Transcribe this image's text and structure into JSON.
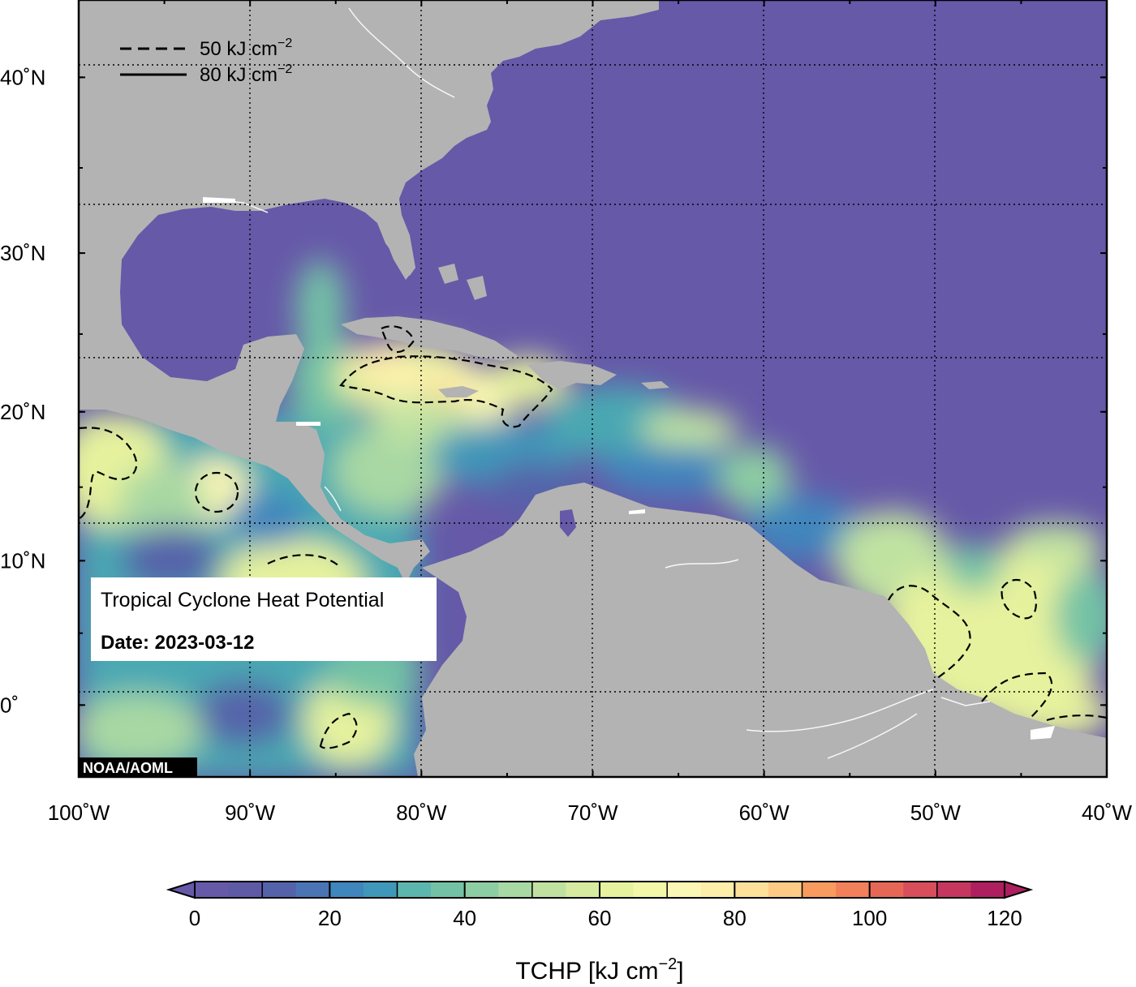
{
  "map": {
    "title": "Tropical Cyclone Heat Potential",
    "date_label": "Date: 2023-03-12",
    "credit": "NOAA/AOML",
    "extent": {
      "lon_min": -100,
      "lon_max": -40,
      "lat_min": -5,
      "lat_max": 44
    },
    "lat_ticks": [
      {
        "value": 40,
        "label": "40˚N"
      },
      {
        "value": 30,
        "label": "30˚N"
      },
      {
        "value": 20,
        "label": "20˚N"
      },
      {
        "value": 10,
        "label": "10˚N"
      },
      {
        "value": 0,
        "label": "0˚"
      }
    ],
    "lon_ticks": [
      {
        "value": -100,
        "label": "100˚W"
      },
      {
        "value": -90,
        "label": "90˚W"
      },
      {
        "value": -80,
        "label": "80˚W"
      },
      {
        "value": -70,
        "label": "70˚W"
      },
      {
        "value": -60,
        "label": "60˚W"
      },
      {
        "value": -50,
        "label": "50˚W"
      },
      {
        "value": -40,
        "label": "40˚W"
      }
    ],
    "legend": [
      {
        "style": "dashed",
        "label_main": "50 kJ cm",
        "label_sup": "−2"
      },
      {
        "style": "solid",
        "label_main": "80 kJ cm",
        "label_sup": "−2"
      }
    ],
    "colors": {
      "land": "#b3b3b3",
      "ocean_low": "#6659a8",
      "frame": "#000000"
    }
  },
  "colorbar": {
    "min": 0,
    "max": 120,
    "step": 5,
    "ticks": [
      {
        "value": 0,
        "label": "0"
      },
      {
        "value": 20,
        "label": "20"
      },
      {
        "value": 40,
        "label": "40"
      },
      {
        "value": 60,
        "label": "60"
      },
      {
        "value": 80,
        "label": "80"
      },
      {
        "value": 100,
        "label": "100"
      },
      {
        "value": 120,
        "label": "120"
      }
    ],
    "title_main": "TCHP [kJ cm",
    "title_sup": "−2",
    "title_end": "]",
    "colors": [
      "#6659a8",
      "#5e5aa6",
      "#5463a9",
      "#4a74b3",
      "#3f86bd",
      "#3f97b9",
      "#4aa8b2",
      "#5db6ad",
      "#73c2a5",
      "#8dcda3",
      "#a8d8a3",
      "#c0e2a1",
      "#d6eb9f",
      "#e6f29d",
      "#f3f7a8",
      "#fbf8b5",
      "#fdeeaa",
      "#fde09a",
      "#fdcb85",
      "#fbb36f",
      "#f89b5e",
      "#f2805a",
      "#e76757",
      "#d84e5b",
      "#c6375f",
      "#ad1f5e"
    ]
  }
}
